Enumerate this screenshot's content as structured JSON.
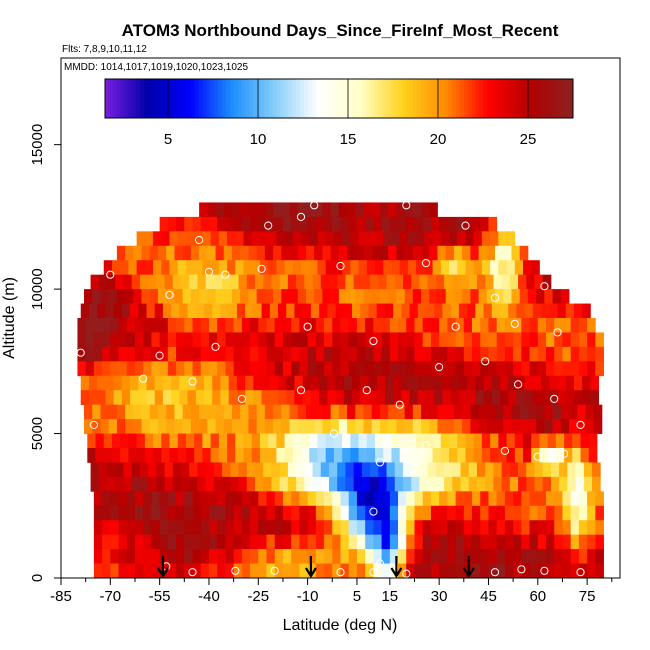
{
  "chart_data": {
    "type": "heatmap",
    "title": "ATOM3 Northbound Days_Since_FireInf_Most_Recent",
    "flights_label": "Flts: 7,8,9,10,11,12",
    "dates_label": "MMDD: 1014,1017,1019,1020,1023,1025",
    "xlabel": "Latitude (deg N)",
    "ylabel": "Altitude (m)",
    "xlim": [
      -85,
      85
    ],
    "ylim": [
      0,
      18000
    ],
    "x_ticks": [
      -85,
      -70,
      -55,
      -40,
      -25,
      -10,
      5,
      15,
      30,
      45,
      60,
      75
    ],
    "y_ticks": [
      0,
      5000,
      10000,
      15000
    ],
    "colorbar": {
      "range": [
        1.5,
        27.5
      ],
      "ticks": [
        5,
        10,
        15,
        20,
        25
      ],
      "colors": [
        "#7a1ee0",
        "#0000a8",
        "#0000ff",
        "#1e90ff",
        "#87cefa",
        "#ffffff",
        "#ffffc8",
        "#ffd21e",
        "#ff8c00",
        "#ff0000",
        "#b20000",
        "#8b2323"
      ]
    },
    "cell_size": {
      "latitude_deg": 2.5,
      "altitude_m": 500
    },
    "profile_rows": [
      {
        "z": 12750,
        "lat": [
          -43,
          28
        ]
      },
      {
        "z": 12250,
        "lat": [
          -55,
          46
        ]
      },
      {
        "z": 11750,
        "lat": [
          -62,
          52
        ]
      },
      {
        "z": 11250,
        "lat": [
          -68,
          56
        ]
      },
      {
        "z": 10750,
        "lat": [
          -72,
          60
        ]
      },
      {
        "z": 10250,
        "lat": [
          -76,
          64
        ]
      },
      {
        "z": 9750,
        "lat": [
          -78,
          69
        ]
      },
      {
        "z": 9250,
        "lat": [
          -79,
          74
        ]
      },
      {
        "z": 8750,
        "lat": [
          -80,
          77
        ]
      },
      {
        "z": 8250,
        "lat": [
          -80,
          78
        ]
      },
      {
        "z": 7750,
        "lat": [
          -80,
          78
        ]
      },
      {
        "z": 7250,
        "lat": [
          -80,
          78
        ]
      },
      {
        "z": 6750,
        "lat": [
          -79,
          78
        ]
      },
      {
        "z": 6250,
        "lat": [
          -79,
          78
        ]
      },
      {
        "z": 5750,
        "lat": [
          -78,
          78
        ]
      },
      {
        "z": 5250,
        "lat": [
          -78,
          78
        ]
      },
      {
        "z": 4750,
        "lat": [
          -77,
          78
        ]
      },
      {
        "z": 4250,
        "lat": [
          -77,
          78
        ]
      },
      {
        "z": 3750,
        "lat": [
          -76,
          78
        ]
      },
      {
        "z": 3250,
        "lat": [
          -76,
          78
        ]
      },
      {
        "z": 2750,
        "lat": [
          -75,
          78
        ]
      },
      {
        "z": 2250,
        "lat": [
          -75,
          78
        ]
      },
      {
        "z": 1750,
        "lat": [
          -75,
          78
        ]
      },
      {
        "z": 1250,
        "lat": [
          -75,
          78
        ]
      },
      {
        "z": 750,
        "lat": [
          -75,
          78
        ]
      },
      {
        "z": 250,
        "lat": [
          -75,
          78
        ]
      }
    ],
    "features": [
      {
        "lat": 10,
        "z": 2000,
        "sigma_lat": 7,
        "sigma_z": 900,
        "delta": -17
      },
      {
        "lat": 5,
        "z": 3400,
        "sigma_lat": 18,
        "sigma_z": 700,
        "delta": -11
      },
      {
        "lat": -5,
        "z": 4600,
        "sigma_lat": 9,
        "sigma_z": 500,
        "delta": -6
      },
      {
        "lat": 20,
        "z": 4800,
        "sigma_lat": 18,
        "sigma_z": 700,
        "delta": -6
      },
      {
        "lat": 13,
        "z": 400,
        "sigma_lat": 3,
        "sigma_z": 600,
        "delta": -7
      },
      {
        "lat": 16,
        "z": 1000,
        "sigma_lat": 3,
        "sigma_z": 800,
        "delta": -7
      },
      {
        "lat": -15,
        "z": 600,
        "sigma_lat": 14,
        "sigma_z": 700,
        "delta": -5
      },
      {
        "lat": 50,
        "z": 11000,
        "sigma_lat": 4,
        "sigma_z": 1100,
        "delta": -9
      },
      {
        "lat": 36,
        "z": 10800,
        "sigma_lat": 6,
        "sigma_z": 500,
        "delta": -7
      },
      {
        "lat": 64,
        "z": 4200,
        "sigma_lat": 3,
        "sigma_z": 400,
        "delta": -10
      },
      {
        "lat": 72,
        "z": 3000,
        "sigma_lat": 3,
        "sigma_z": 1600,
        "delta": -7
      },
      {
        "lat": -45,
        "z": 6800,
        "sigma_lat": 22,
        "sigma_z": 1200,
        "delta": -4
      },
      {
        "lat": -42,
        "z": 9700,
        "sigma_lat": 10,
        "sigma_z": 800,
        "delta": -5
      },
      {
        "lat": -50,
        "z": 500,
        "sigma_lat": 15,
        "sigma_z": 700,
        "delta": 3
      },
      {
        "lat": -15,
        "z": 12200,
        "sigma_lat": 8,
        "sigma_z": 700,
        "delta": 2
      },
      {
        "lat": -75,
        "z": 8500,
        "sigma_lat": 6,
        "sigma_z": 2000,
        "delta": 2
      }
    ],
    "flight_markers": [
      {
        "lat": -53,
        "z": 400
      },
      {
        "lat": -45,
        "z": 200
      },
      {
        "lat": -32,
        "z": 250
      },
      {
        "lat": -20,
        "z": 250
      },
      {
        "lat": 0,
        "z": 200
      },
      {
        "lat": 10,
        "z": 200
      },
      {
        "lat": 12,
        "z": 500
      },
      {
        "lat": 20,
        "z": 150
      },
      {
        "lat": 47,
        "z": 200
      },
      {
        "lat": 55,
        "z": 300
      },
      {
        "lat": 62,
        "z": 250
      },
      {
        "lat": 73,
        "z": 200
      },
      {
        "lat": 10,
        "z": 2300
      },
      {
        "lat": 12,
        "z": 4000
      },
      {
        "lat": -8,
        "z": 3200
      },
      {
        "lat": -2,
        "z": 5000
      },
      {
        "lat": 14,
        "z": 4800
      },
      {
        "lat": 26,
        "z": 4600
      },
      {
        "lat": 50,
        "z": 4400
      },
      {
        "lat": 60,
        "z": 4200
      },
      {
        "lat": 68,
        "z": 4300
      },
      {
        "lat": 73,
        "z": 5300
      },
      {
        "lat": -75,
        "z": 5300
      },
      {
        "lat": -60,
        "z": 6900
      },
      {
        "lat": -45,
        "z": 6800
      },
      {
        "lat": -30,
        "z": 6200
      },
      {
        "lat": -12,
        "z": 6500
      },
      {
        "lat": 8,
        "z": 6500
      },
      {
        "lat": 18,
        "z": 6000
      },
      {
        "lat": 30,
        "z": 7300
      },
      {
        "lat": 44,
        "z": 7500
      },
      {
        "lat": 54,
        "z": 6700
      },
      {
        "lat": 65,
        "z": 6200
      },
      {
        "lat": -79,
        "z": 7800
      },
      {
        "lat": -55,
        "z": 7700
      },
      {
        "lat": -38,
        "z": 8000
      },
      {
        "lat": -10,
        "z": 8700
      },
      {
        "lat": 10,
        "z": 8200
      },
      {
        "lat": 35,
        "z": 8700
      },
      {
        "lat": 53,
        "z": 8800
      },
      {
        "lat": 66,
        "z": 8500
      },
      {
        "lat": -70,
        "z": 10500
      },
      {
        "lat": -52,
        "z": 9800
      },
      {
        "lat": -40,
        "z": 10600
      },
      {
        "lat": -24,
        "z": 10700
      },
      {
        "lat": 0,
        "z": 10800
      },
      {
        "lat": 26,
        "z": 10900
      },
      {
        "lat": 47,
        "z": 9700
      },
      {
        "lat": 62,
        "z": 10100
      },
      {
        "lat": -43,
        "z": 11700
      },
      {
        "lat": -22,
        "z": 12200
      },
      {
        "lat": -8,
        "z": 12900
      },
      {
        "lat": 20,
        "z": 12900
      },
      {
        "lat": 38,
        "z": 12200
      },
      {
        "lat": -12,
        "z": 12500
      },
      {
        "lat": -35,
        "z": 10500
      },
      {
        "lat": 55,
        "z": 11800
      }
    ],
    "arrows_lat": [
      -54,
      -9,
      17,
      39
    ]
  }
}
